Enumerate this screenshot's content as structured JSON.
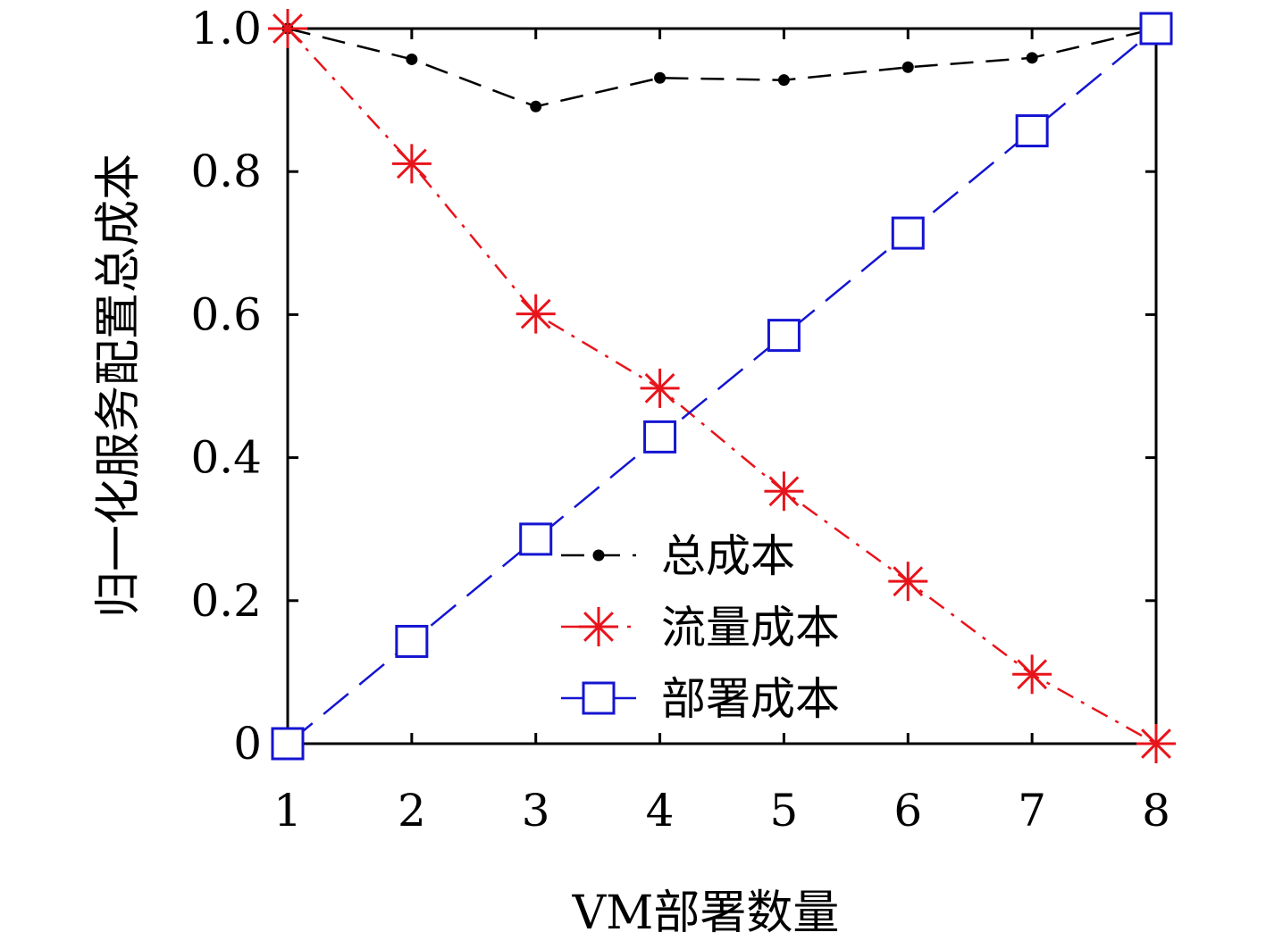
{
  "chart_data": {
    "type": "line",
    "title": "",
    "xlabel": "VM部署数量",
    "ylabel": "归一化服务配置总成本",
    "x": [
      1,
      2,
      3,
      4,
      5,
      6,
      7,
      8
    ],
    "xlim": [
      1,
      8
    ],
    "ylim": [
      0,
      1
    ],
    "xticks": [
      "1",
      "2",
      "3",
      "4",
      "5",
      "6",
      "7",
      "8"
    ],
    "yticks": [
      {
        "value": 0,
        "label": "0"
      },
      {
        "value": 0.2,
        "label": "0.2"
      },
      {
        "value": 0.4,
        "label": "0.4"
      },
      {
        "value": 0.6,
        "label": "0.6"
      },
      {
        "value": 0.8,
        "label": "0.8"
      },
      {
        "value": 1.0,
        "label": "1.0"
      }
    ],
    "grid": false,
    "legend_position": "bottom-center",
    "series": [
      {
        "name": "总成本",
        "color": "#000000",
        "marker": "dot",
        "line_style": "dashed",
        "values": [
          1.0,
          0.957,
          0.891,
          0.931,
          0.928,
          0.946,
          0.959,
          1.0
        ]
      },
      {
        "name": "流量成本",
        "color": "#e8141b",
        "marker": "asterisk",
        "line_style": "dash-dot",
        "values": [
          1.0,
          0.811,
          0.601,
          0.497,
          0.353,
          0.227,
          0.097,
          0.0
        ]
      },
      {
        "name": "部署成本",
        "color": "#1414d2",
        "marker": "square",
        "line_style": "long-dash",
        "values": [
          0.0,
          0.143,
          0.286,
          0.429,
          0.571,
          0.714,
          0.857,
          1.0
        ]
      }
    ]
  }
}
